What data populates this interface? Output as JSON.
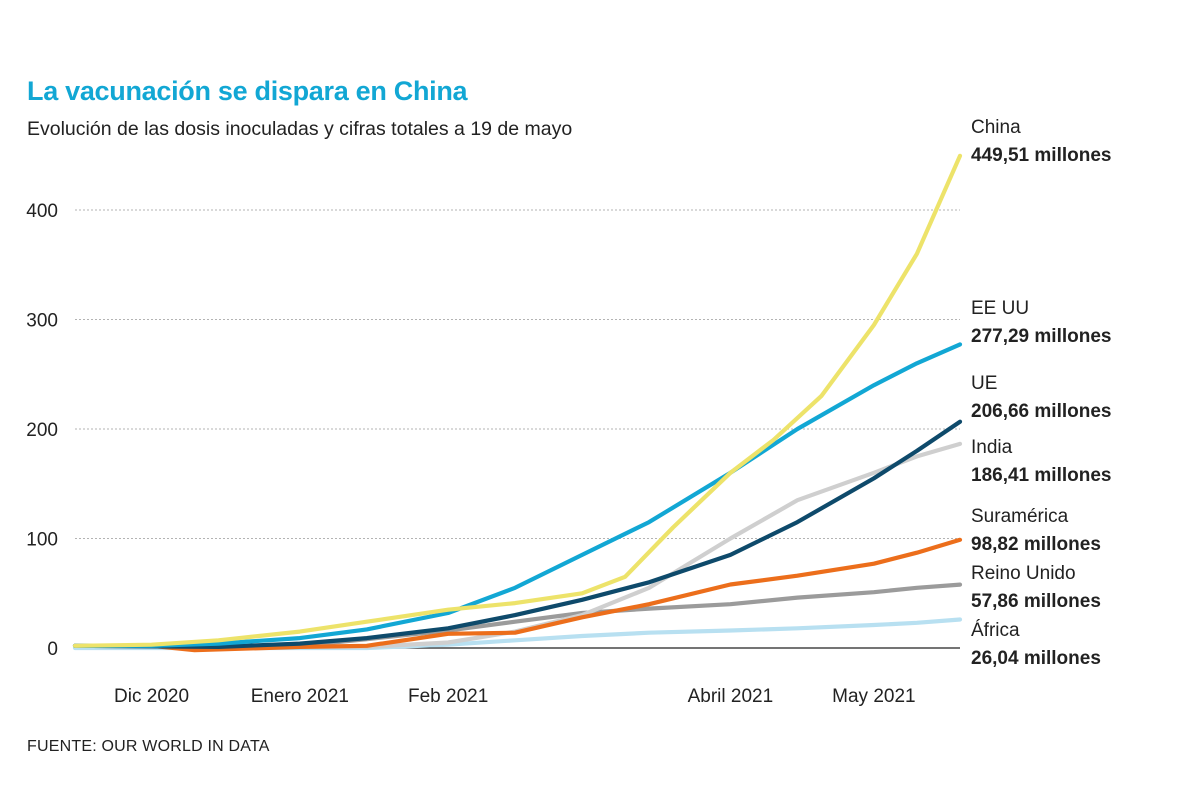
{
  "title": "La vacunación se dispara en China",
  "subtitle": "Evolución de las dosis inoculadas y cifras totales a 19 de mayo",
  "source": "FUENTE: OUR WORLD IN DATA",
  "chart_data": {
    "type": "line",
    "title": "La vacunación se dispara en China",
    "subtitle": "Evolución de las dosis inoculadas y cifras totales a 19 de mayo",
    "ylim": [
      0,
      460
    ],
    "yticks": [
      0,
      100,
      200,
      300,
      400
    ],
    "xlim": [
      "2020-11-15",
      "2021-05-19"
    ],
    "xticks": [
      {
        "label": "Dic 2020",
        "date": "2020-12-01"
      },
      {
        "label": "Enero 2021",
        "date": "2021-01-01"
      },
      {
        "label": "Feb 2021",
        "date": "2021-02-01"
      },
      {
        "label": "Abril 2021",
        "date": "2021-04-01"
      },
      {
        "label": "May 2021",
        "date": "2021-05-01"
      }
    ],
    "grid": true,
    "series": [
      {
        "name": "China",
        "value_label": "449,51 millones",
        "color": "#ede36a",
        "points": [
          [
            "2020-11-15",
            2
          ],
          [
            "2020-12-01",
            3
          ],
          [
            "2020-12-15",
            7
          ],
          [
            "2021-01-01",
            15
          ],
          [
            "2021-01-15",
            24
          ],
          [
            "2021-02-01",
            35
          ],
          [
            "2021-02-15",
            41
          ],
          [
            "2021-03-01",
            50
          ],
          [
            "2021-03-10",
            65
          ],
          [
            "2021-03-20",
            110
          ],
          [
            "2021-04-01",
            160
          ],
          [
            "2021-04-10",
            190
          ],
          [
            "2021-04-20",
            230
          ],
          [
            "2021-05-01",
            295
          ],
          [
            "2021-05-10",
            360
          ],
          [
            "2021-05-19",
            449.51
          ]
        ]
      },
      {
        "name": "EE UU",
        "value_label": "277,29 millones",
        "color": "#12a7d4",
        "points": [
          [
            "2020-11-15",
            2
          ],
          [
            "2020-12-01",
            2
          ],
          [
            "2020-12-15",
            4
          ],
          [
            "2021-01-01",
            9
          ],
          [
            "2021-01-15",
            17
          ],
          [
            "2021-02-01",
            32
          ],
          [
            "2021-02-15",
            55
          ],
          [
            "2021-03-01",
            85
          ],
          [
            "2021-03-15",
            115
          ],
          [
            "2021-04-01",
            160
          ],
          [
            "2021-04-15",
            200
          ],
          [
            "2021-05-01",
            240
          ],
          [
            "2021-05-10",
            260
          ],
          [
            "2021-05-19",
            277.29
          ]
        ]
      },
      {
        "name": "UE",
        "value_label": "206,66 millones",
        "color": "#0e4a6b",
        "points": [
          [
            "2020-11-15",
            2
          ],
          [
            "2020-12-15",
            1
          ],
          [
            "2021-01-01",
            4
          ],
          [
            "2021-01-15",
            9
          ],
          [
            "2021-02-01",
            18
          ],
          [
            "2021-02-15",
            30
          ],
          [
            "2021-03-01",
            44
          ],
          [
            "2021-03-15",
            60
          ],
          [
            "2021-04-01",
            85
          ],
          [
            "2021-04-15",
            115
          ],
          [
            "2021-05-01",
            155
          ],
          [
            "2021-05-10",
            180
          ],
          [
            "2021-05-19",
            206.66
          ]
        ]
      },
      {
        "name": "India",
        "value_label": "186,41 millones",
        "color": "#cfcfcf",
        "points": [
          [
            "2020-11-15",
            2
          ],
          [
            "2020-12-15",
            1
          ],
          [
            "2021-01-15",
            1
          ],
          [
            "2021-02-01",
            5
          ],
          [
            "2021-02-15",
            15
          ],
          [
            "2021-03-01",
            30
          ],
          [
            "2021-03-15",
            55
          ],
          [
            "2021-04-01",
            100
          ],
          [
            "2021-04-15",
            135
          ],
          [
            "2021-05-01",
            160
          ],
          [
            "2021-05-10",
            175
          ],
          [
            "2021-05-19",
            186.41
          ]
        ]
      },
      {
        "name": "Suramérica",
        "value_label": "98,82 millones",
        "color": "#ec6e1b",
        "points": [
          [
            "2020-11-15",
            2
          ],
          [
            "2020-12-01",
            2
          ],
          [
            "2020-12-10",
            -2
          ],
          [
            "2021-01-01",
            1
          ],
          [
            "2021-01-15",
            2
          ],
          [
            "2021-02-01",
            13
          ],
          [
            "2021-02-15",
            14
          ],
          [
            "2021-03-01",
            28
          ],
          [
            "2021-03-15",
            40
          ],
          [
            "2021-04-01",
            58
          ],
          [
            "2021-04-15",
            66
          ],
          [
            "2021-05-01",
            77
          ],
          [
            "2021-05-10",
            87
          ],
          [
            "2021-05-19",
            98.82
          ]
        ]
      },
      {
        "name": "Reino Unido",
        "value_label": "57,86 millones",
        "color": "#9b9b9b",
        "points": [
          [
            "2020-11-15",
            2
          ],
          [
            "2020-12-15",
            1
          ],
          [
            "2021-01-01",
            2
          ],
          [
            "2021-01-15",
            8
          ],
          [
            "2021-02-01",
            16
          ],
          [
            "2021-02-15",
            24
          ],
          [
            "2021-03-01",
            32
          ],
          [
            "2021-03-15",
            36
          ],
          [
            "2021-04-01",
            40
          ],
          [
            "2021-04-15",
            46
          ],
          [
            "2021-05-01",
            51
          ],
          [
            "2021-05-10",
            55
          ],
          [
            "2021-05-19",
            57.86
          ]
        ]
      },
      {
        "name": "África",
        "value_label": "26,04 millones",
        "color": "#b8e0f1",
        "points": [
          [
            "2020-11-15",
            0
          ],
          [
            "2021-01-15",
            0
          ],
          [
            "2021-02-01",
            3
          ],
          [
            "2021-02-15",
            7
          ],
          [
            "2021-03-01",
            11
          ],
          [
            "2021-03-15",
            14
          ],
          [
            "2021-04-01",
            16
          ],
          [
            "2021-04-15",
            18
          ],
          [
            "2021-05-01",
            21
          ],
          [
            "2021-05-10",
            23
          ],
          [
            "2021-05-19",
            26.04
          ]
        ]
      }
    ]
  }
}
